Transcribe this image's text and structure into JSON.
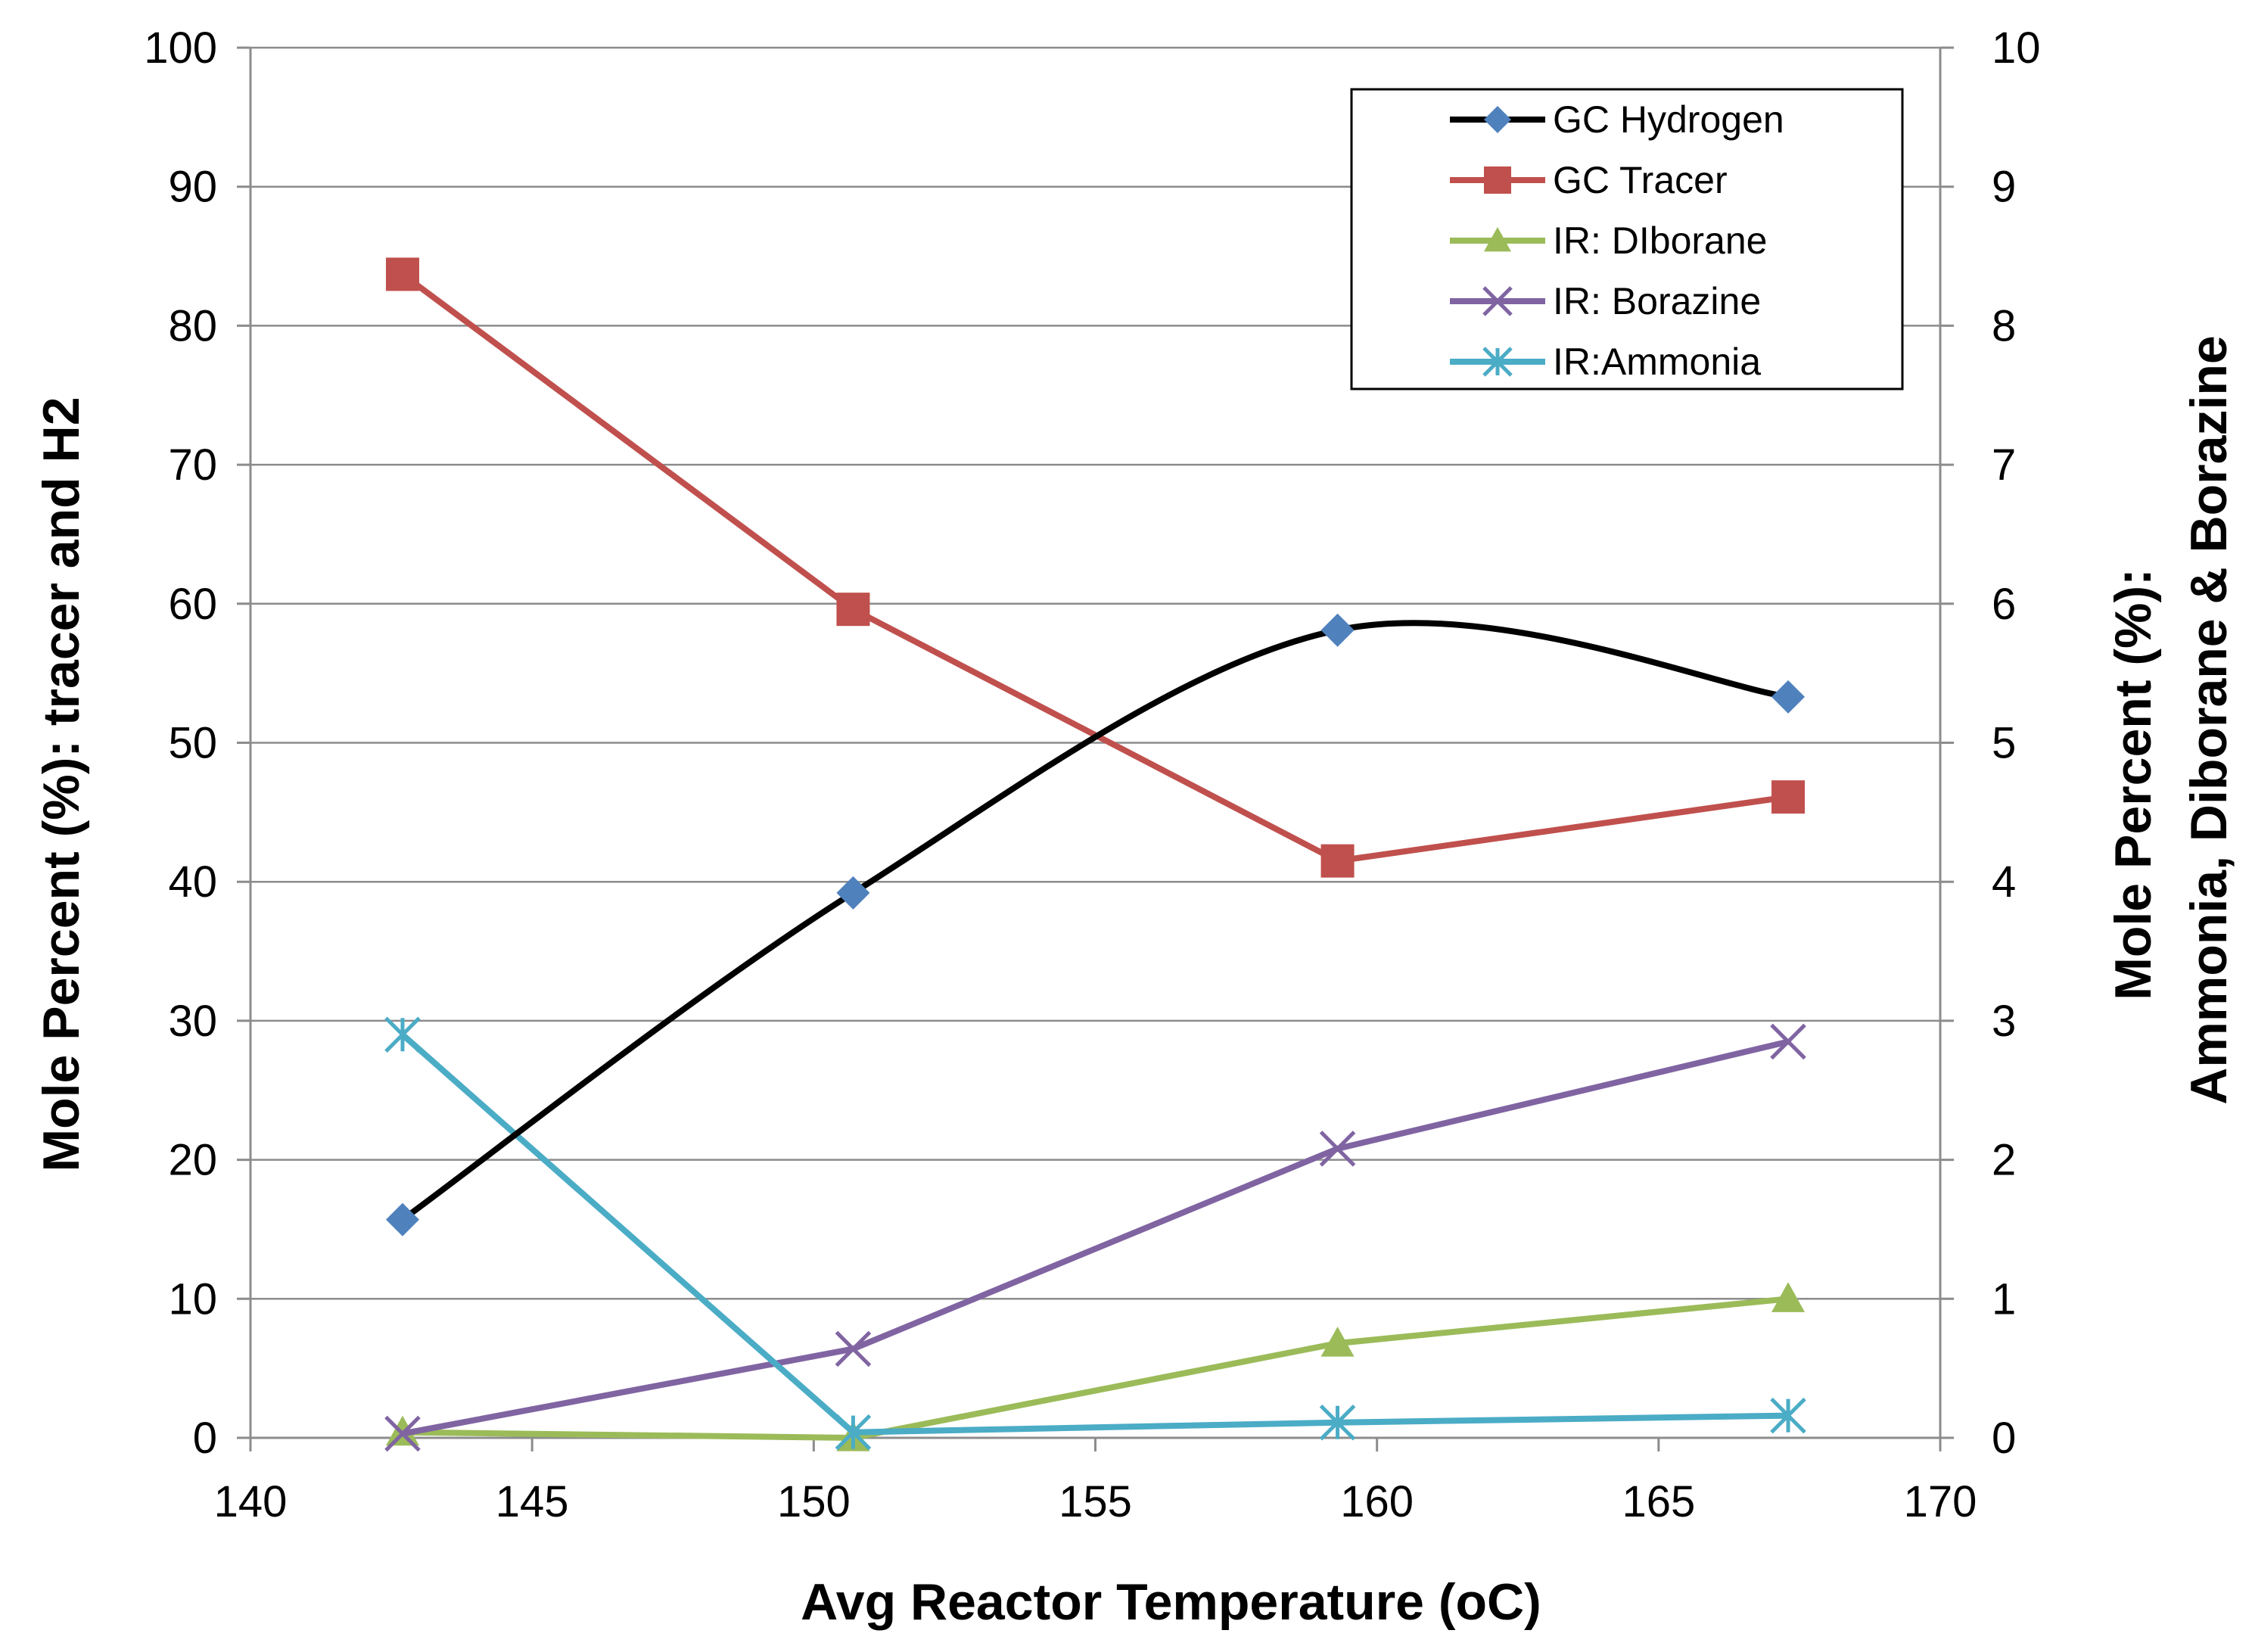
{
  "chart_data": {
    "type": "line",
    "title": "",
    "xlabel": "Avg Reactor Temperature (oC)",
    "ylabel": "Mole Percent (%): tracer and H2",
    "y2label": [
      "Mole Percent (%):",
      "Ammonia, Diborane & Borazine"
    ],
    "xlim": [
      140,
      170
    ],
    "ylim": [
      0,
      100
    ],
    "y2lim": [
      0,
      10
    ],
    "xticks": [
      140,
      145,
      150,
      155,
      160,
      165,
      170
    ],
    "yticks": [
      0,
      10,
      20,
      30,
      40,
      50,
      60,
      70,
      80,
      90,
      100
    ],
    "y2ticks": [
      0,
      1,
      2,
      3,
      4,
      5,
      6,
      7,
      8,
      9,
      10
    ],
    "grid": true,
    "legend_position": "top-right",
    "series": [
      {
        "name": "GC Hydrogen",
        "axis": "left",
        "color": "#000000",
        "marker": "diamond",
        "marker_color": "#4F81BD",
        "smooth": true,
        "x": [
          142.7,
          150.7,
          159.3,
          167.3
        ],
        "y": [
          15.7,
          39.2,
          58.1,
          53.3
        ]
      },
      {
        "name": "GC Tracer",
        "axis": "left",
        "color": "#C0504D",
        "marker": "square",
        "marker_color": "#C0504D",
        "smooth": false,
        "x": [
          142.7,
          150.7,
          159.3,
          167.3
        ],
        "y": [
          83.7,
          59.6,
          41.5,
          46.1
        ]
      },
      {
        "name": "IR: DIborane",
        "axis": "right",
        "color": "#9BBB59",
        "marker": "triangle",
        "marker_color": "#9BBB59",
        "smooth": false,
        "x": [
          142.7,
          150.7,
          159.3,
          167.3
        ],
        "y": [
          0.04,
          0.0,
          0.68,
          1.0
        ]
      },
      {
        "name": "IR: Borazine",
        "axis": "right",
        "color": "#8064A2",
        "marker": "x",
        "marker_color": "#8064A2",
        "smooth": false,
        "x": [
          142.7,
          150.7,
          159.3,
          167.3
        ],
        "y": [
          0.03,
          0.64,
          2.08,
          2.85
        ]
      },
      {
        "name": "IR:Ammonia",
        "axis": "right",
        "color": "#4BACC6",
        "marker": "star",
        "marker_color": "#4BACC6",
        "smooth": false,
        "x": [
          142.7,
          150.7,
          159.3,
          167.3
        ],
        "y": [
          2.9,
          0.04,
          0.11,
          0.16
        ]
      }
    ]
  }
}
